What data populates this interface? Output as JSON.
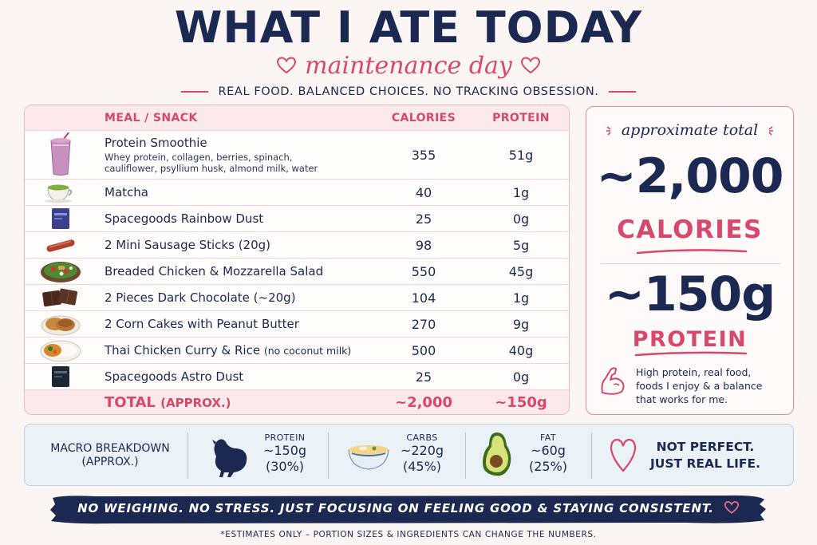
{
  "header": {
    "title": "WHAT I ATE TODAY",
    "subtitle": "maintenance day",
    "tagline": "REAL FOOD. BALANCED CHOICES. NO TRACKING OBSESSION."
  },
  "table": {
    "headers": {
      "meal": "MEAL / SNACK",
      "calories": "CALORIES",
      "protein": "PROTEIN"
    },
    "rows": [
      {
        "name": "Protein Smoothie",
        "desc": "Whey protein, collagen, berries, spinach, cauliflower, psyllium husk, almond milk, water",
        "calories": "355",
        "protein": "51g",
        "icon": "smoothie-icon"
      },
      {
        "name": "Matcha",
        "calories": "40",
        "protein": "1g",
        "icon": "matcha-icon"
      },
      {
        "name": "Spacegoods Rainbow Dust",
        "calories": "25",
        "protein": "0g",
        "icon": "pouch-icon"
      },
      {
        "name": "2 Mini Sausage Sticks (20g)",
        "calories": "98",
        "protein": "5g",
        "icon": "sausage-icon"
      },
      {
        "name": "Breaded Chicken & Mozzarella Salad",
        "calories": "550",
        "protein": "45g",
        "icon": "salad-icon"
      },
      {
        "name": "2 Pieces Dark Chocolate (~20g)",
        "calories": "104",
        "protein": "1g",
        "icon": "chocolate-icon"
      },
      {
        "name": "2 Corn Cakes with Peanut Butter",
        "calories": "270",
        "protein": "9g",
        "icon": "corn-cake-icon"
      },
      {
        "name": "Thai Chicken Curry & Rice",
        "note": "(no coconut milk)",
        "calories": "500",
        "protein": "40g",
        "icon": "curry-icon"
      },
      {
        "name": "Spacegoods Astro Dust",
        "calories": "25",
        "protein": "0g",
        "icon": "pouch-dark-icon"
      }
    ],
    "total": {
      "label": "TOTAL",
      "label_note": "(APPROX.)",
      "calories": "~2,000",
      "protein": "~150g"
    }
  },
  "summary": {
    "label": "approximate total",
    "calories_value": "~2,000",
    "calories_word": "CALORIES",
    "protein_value": "~150g",
    "protein_word": "PROTEIN",
    "note_lines": [
      "High protein, real food,",
      "foods I enjoy & a balance",
      "that works for me."
    ]
  },
  "macros": {
    "title_lines": [
      "MACRO BREAKDOWN",
      "(APPROX.)"
    ],
    "items": [
      {
        "label": "PROTEIN",
        "value": "~150g",
        "percent": "(30%)",
        "icon": "chicken-icon"
      },
      {
        "label": "CARBS",
        "value": "~220g",
        "percent": "(45%)",
        "icon": "noodle-bowl-icon"
      },
      {
        "label": "FAT",
        "value": "~60g",
        "percent": "(25%)",
        "icon": "avocado-icon"
      }
    ],
    "motto_lines": [
      "NOT PERFECT.",
      "JUST REAL LIFE."
    ]
  },
  "banner": "NO WEIGHING. NO STRESS. JUST FOCUSING ON FEELING GOOD & STAYING CONSISTENT.",
  "footnote": "*ESTIMATES ONLY – PORTION SIZES & INGREDIENTS CAN CHANGE THE NUMBERS.",
  "colors": {
    "navy": "#1b2852",
    "pink": "#d8476c",
    "background": "#fbf6f3"
  }
}
